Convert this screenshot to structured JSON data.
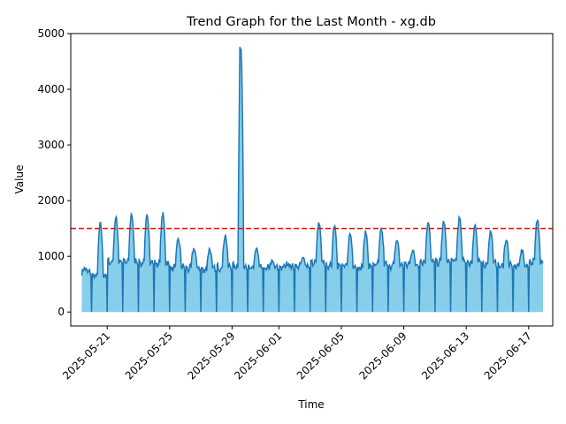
{
  "chart_data": {
    "type": "area",
    "title": "Trend Graph for the Last Month - xg.db",
    "xlabel": "Time",
    "ylabel": "Value",
    "x_start": "2025-05-19T09:00",
    "x_end": "2025-06-17T22:00",
    "xlim": [
      "2025-05-18T16:00",
      "2025-06-18T13:00"
    ],
    "ylim": [
      -250,
      5000
    ],
    "xticks": [
      "2025-05-21",
      "2025-05-25",
      "2025-05-29",
      "2025-06-01",
      "2025-06-05",
      "2025-06-09",
      "2025-06-13",
      "2025-06-17"
    ],
    "yticks": [
      0,
      1000,
      2000,
      3000,
      4000,
      5000
    ],
    "threshold": 1500,
    "grid": false,
    "fill_color": "#87ceeb",
    "line_color": "#1f77b4",
    "threshold_color": "#ff0000",
    "daily_series": {
      "dates": [
        "2025-05-19",
        "2025-05-20",
        "2025-05-21",
        "2025-05-22",
        "2025-05-23",
        "2025-05-24",
        "2025-05-25",
        "2025-05-26",
        "2025-05-27",
        "2025-05-28",
        "2025-05-29",
        "2025-05-30",
        "2025-05-31",
        "2025-06-01",
        "2025-06-02",
        "2025-06-03",
        "2025-06-04",
        "2025-06-05",
        "2025-06-06",
        "2025-06-07",
        "2025-06-08",
        "2025-06-09",
        "2025-06-10",
        "2025-06-11",
        "2025-06-12",
        "2025-06-13",
        "2025-06-14",
        "2025-06-15",
        "2025-06-16",
        "2025-06-17"
      ],
      "peak": [
        780,
        1580,
        1680,
        1760,
        1740,
        1760,
        1300,
        1140,
        1130,
        1380,
        4760,
        1130,
        900,
        880,
        960,
        1590,
        1570,
        1400,
        1430,
        1480,
        1290,
        1100,
        1600,
        1620,
        1680,
        1560,
        1450,
        1300,
        1100,
        1650
      ],
      "base": [
        700,
        650,
        900,
        900,
        880,
        870,
        800,
        780,
        760,
        800,
        820,
        780,
        780,
        800,
        820,
        880,
        820,
        820,
        800,
        850,
        830,
        850,
        900,
        900,
        920,
        880,
        860,
        820,
        820,
        900
      ],
      "low_drops": [
        0,
        0,
        0,
        0,
        0,
        0,
        0,
        0,
        0,
        0,
        0,
        0,
        0,
        0,
        0,
        0,
        0,
        0,
        0,
        0,
        0,
        0,
        0,
        0,
        0,
        0,
        0,
        0,
        0,
        0
      ]
    }
  }
}
